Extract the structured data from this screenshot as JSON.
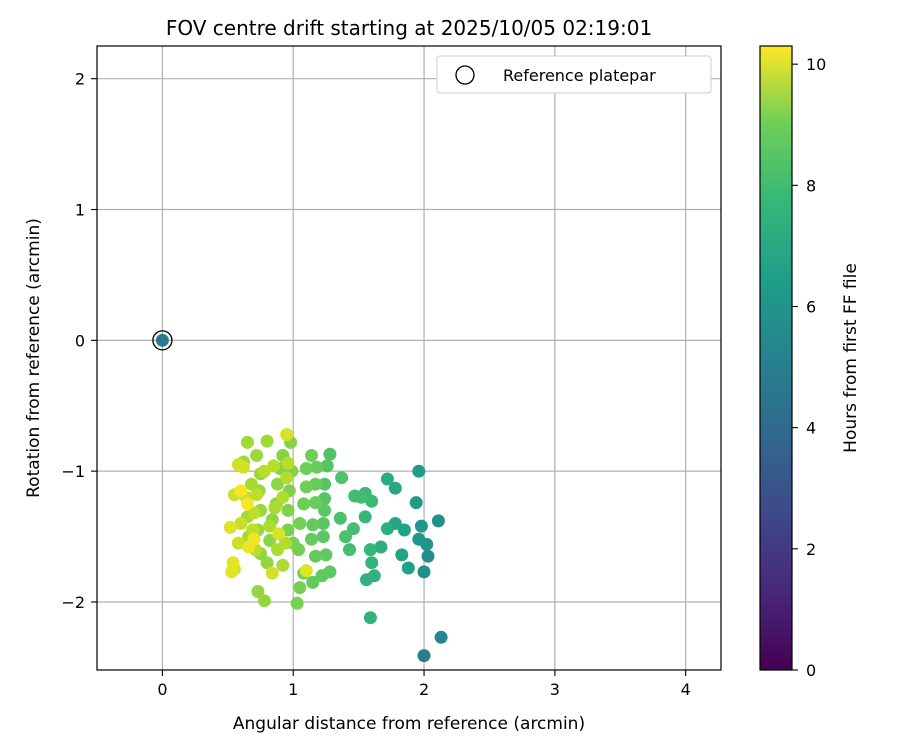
{
  "chart_data": {
    "type": "scatter",
    "title": "FOV centre drift starting at 2025/10/05 02:19:01",
    "xlabel": "Angular distance from reference (arcmin)",
    "ylabel": "Rotation from reference (arcmin)",
    "xlim": [
      -0.5,
      4.27
    ],
    "ylim": [
      -2.52,
      2.25
    ],
    "x_ticks": [
      0,
      1,
      2,
      3,
      4
    ],
    "y_ticks": [
      -2,
      -1,
      0,
      1,
      2
    ],
    "x_tick_labels": [
      "0",
      "1",
      "2",
      "3",
      "4"
    ],
    "y_tick_labels": [
      "−2",
      "−1",
      "0",
      "1",
      "2"
    ],
    "grid": true,
    "legend": {
      "position": "top-right",
      "entries": [
        "Reference platepar"
      ]
    },
    "colorbar": {
      "label": "Hours from first FF file",
      "range": [
        0,
        10.3
      ],
      "ticks": [
        0,
        2,
        4,
        6,
        8,
        10
      ],
      "tick_labels": [
        "0",
        "2",
        "4",
        "6",
        "8",
        "10"
      ],
      "colormap": "viridis"
    },
    "reference_point": {
      "x": 0,
      "y": 0,
      "hours": 4.3
    },
    "points": [
      [
        2.0,
        -2.41,
        4.4
      ],
      [
        2.13,
        -2.27,
        4.8
      ],
      [
        2.03,
        -1.65,
        5.0
      ],
      [
        2.11,
        -1.38,
        5.1
      ],
      [
        2.0,
        -1.77,
        5.2
      ],
      [
        2.02,
        -1.56,
        5.3
      ],
      [
        1.96,
        -1.52,
        5.4
      ],
      [
        1.98,
        -1.42,
        5.5
      ],
      [
        1.96,
        -1.0,
        5.6
      ],
      [
        1.94,
        -1.24,
        5.6
      ],
      [
        1.88,
        -1.74,
        5.8
      ],
      [
        1.83,
        -1.64,
        5.9
      ],
      [
        1.85,
        -1.45,
        6.0
      ],
      [
        1.78,
        -1.4,
        6.1
      ],
      [
        1.78,
        -1.13,
        6.2
      ],
      [
        1.72,
        -1.06,
        6.3
      ],
      [
        1.72,
        -1.44,
        6.4
      ],
      [
        1.67,
        -1.58,
        6.5
      ],
      [
        1.62,
        -1.8,
        6.6
      ],
      [
        1.56,
        -1.83,
        6.6
      ],
      [
        1.59,
        -2.12,
        6.7
      ],
      [
        1.59,
        -1.6,
        6.8
      ],
      [
        1.6,
        -1.7,
        6.8
      ],
      [
        1.55,
        -1.35,
        6.9
      ],
      [
        1.55,
        -1.17,
        7.0
      ],
      [
        1.6,
        -1.23,
        7.0
      ],
      [
        1.52,
        -1.2,
        7.1
      ],
      [
        1.47,
        -1.19,
        7.1
      ],
      [
        1.46,
        -1.44,
        7.2
      ],
      [
        1.43,
        -1.6,
        7.2
      ],
      [
        1.4,
        -1.5,
        7.3
      ],
      [
        1.36,
        -1.36,
        7.3
      ],
      [
        1.37,
        -1.05,
        7.4
      ],
      [
        1.28,
        -0.87,
        7.4
      ],
      [
        1.26,
        -0.96,
        7.5
      ],
      [
        1.24,
        -1.1,
        7.5
      ],
      [
        1.24,
        -1.21,
        7.5
      ],
      [
        1.24,
        -1.3,
        7.6
      ],
      [
        1.23,
        -1.4,
        7.6
      ],
      [
        1.23,
        -1.5,
        7.6
      ],
      [
        1.25,
        -1.64,
        7.7
      ],
      [
        1.22,
        -1.8,
        7.7
      ],
      [
        1.28,
        -1.77,
        7.7
      ],
      [
        1.17,
        -1.65,
        7.8
      ],
      [
        1.15,
        -1.85,
        7.8
      ],
      [
        1.14,
        -1.52,
        7.8
      ],
      [
        1.15,
        -1.41,
        7.8
      ],
      [
        1.17,
        -1.24,
        7.9
      ],
      [
        1.17,
        -1.1,
        7.9
      ],
      [
        1.18,
        -0.97,
        7.9
      ],
      [
        1.14,
        -0.88,
        8.0
      ],
      [
        1.1,
        -0.98,
        8.0
      ],
      [
        1.1,
        -1.12,
        8.0
      ],
      [
        1.08,
        -1.25,
        8.0
      ],
      [
        1.05,
        -1.4,
        8.1
      ],
      [
        1.04,
        -1.6,
        8.1
      ],
      [
        1.08,
        -1.78,
        8.1
      ],
      [
        1.05,
        -1.89,
        8.1
      ],
      [
        1.03,
        -2.01,
        8.2
      ],
      [
        1.0,
        -1.55,
        8.2
      ],
      [
        0.96,
        -1.45,
        8.2
      ],
      [
        0.96,
        -1.3,
        8.3
      ],
      [
        0.97,
        -1.15,
        8.3
      ],
      [
        0.99,
        -1.0,
        8.3
      ],
      [
        0.98,
        -0.78,
        8.4
      ],
      [
        0.92,
        -0.88,
        8.4
      ],
      [
        0.9,
        -0.98,
        8.4
      ],
      [
        0.88,
        -1.1,
        8.5
      ],
      [
        0.87,
        -1.25,
        8.5
      ],
      [
        0.84,
        -1.37,
        8.5
      ],
      [
        0.82,
        -1.53,
        8.5
      ],
      [
        0.8,
        -1.7,
        8.6
      ],
      [
        0.78,
        -1.99,
        8.6
      ],
      [
        0.73,
        -1.92,
        8.6
      ],
      [
        0.75,
        -1.63,
        8.6
      ],
      [
        0.73,
        -1.45,
        8.7
      ],
      [
        0.75,
        -1.3,
        8.7
      ],
      [
        0.74,
        -1.15,
        8.7
      ],
      [
        0.75,
        -1.02,
        8.7
      ],
      [
        0.72,
        -0.88,
        8.8
      ],
      [
        0.8,
        -0.77,
        8.8
      ],
      [
        0.65,
        -0.78,
        8.8
      ],
      [
        0.62,
        -0.93,
        8.8
      ],
      [
        0.68,
        -1.1,
        8.9
      ],
      [
        0.65,
        -1.35,
        8.9
      ],
      [
        0.66,
        -1.5,
        8.9
      ],
      [
        0.82,
        -1.42,
        9.0
      ],
      [
        0.86,
        -1.28,
        9.0
      ],
      [
        0.88,
        -1.6,
        9.0
      ],
      [
        0.92,
        -1.72,
        9.0
      ],
      [
        0.94,
        -1.55,
        9.1
      ],
      [
        0.92,
        -1.2,
        9.1
      ],
      [
        0.95,
        -1.05,
        9.1
      ],
      [
        0.96,
        -0.94,
        9.2
      ],
      [
        0.85,
        -0.96,
        9.2
      ],
      [
        0.78,
        -1.0,
        9.2
      ],
      [
        0.72,
        -1.18,
        9.3
      ],
      [
        0.7,
        -1.32,
        9.3
      ],
      [
        0.69,
        -1.45,
        9.3
      ],
      [
        0.71,
        -1.6,
        9.3
      ],
      [
        0.64,
        -1.2,
        9.4
      ],
      [
        0.6,
        -1.4,
        9.4
      ],
      [
        0.58,
        -1.55,
        9.5
      ],
      [
        0.55,
        -1.75,
        9.5
      ],
      [
        0.55,
        -1.18,
        9.5
      ],
      [
        0.58,
        -0.95,
        9.6
      ],
      [
        0.62,
        -0.97,
        9.6
      ],
      [
        0.84,
        -1.78,
        9.6
      ],
      [
        0.89,
        -1.48,
        9.7
      ],
      [
        0.95,
        -0.72,
        9.7
      ],
      [
        1.1,
        -1.76,
        9.8
      ],
      [
        0.52,
        -1.43,
        9.8
      ],
      [
        0.54,
        -1.7,
        9.9
      ],
      [
        0.53,
        -1.77,
        9.9
      ],
      [
        0.66,
        -1.58,
        10.0
      ],
      [
        0.7,
        -1.52,
        10.1
      ],
      [
        0.65,
        -1.25,
        10.2
      ],
      [
        0.6,
        -1.15,
        10.2
      ]
    ]
  }
}
